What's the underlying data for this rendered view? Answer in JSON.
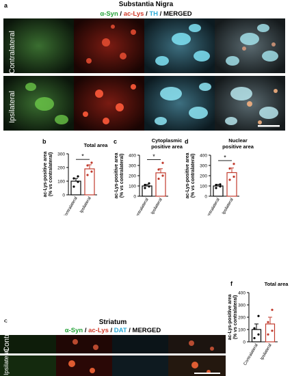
{
  "figure": {
    "panels": {
      "a": {
        "letter": "a",
        "title": "Substantia Nigra",
        "stains": [
          "α-Syn",
          "ac-Lys",
          "TH",
          "MERGED"
        ],
        "rows": [
          "Contralateral",
          "Ipsilateral"
        ]
      },
      "e": {
        "letter": "e",
        "title": "Striatum",
        "stains": [
          "α-Syn",
          "ac-Lys",
          "DAT",
          "MERGED"
        ],
        "rows": [
          "Contralateral",
          "Ipsilateral"
        ]
      }
    },
    "stain_colors": {
      "green": "#27a33a",
      "red": "#d23a2a",
      "cyan": "#29a9d6",
      "black": "#000000"
    }
  },
  "chart_data": [
    {
      "letter": "b",
      "type": "bar",
      "title": "Total area",
      "ylabel": "ac-Lys-positive area\n(% vs contralateral)",
      "categories": [
        "Contralateral",
        "Ipsilateral"
      ],
      "values": [
        100,
        190
      ],
      "errors": [
        20,
        30
      ],
      "points": [
        [
          60,
          95,
          120,
          135
        ],
        [
          145,
          170,
          215,
          235
        ]
      ],
      "ylim": [
        0,
        300
      ],
      "yticks": [
        0,
        100,
        200,
        300
      ],
      "significance": "*"
    },
    {
      "letter": "c",
      "type": "bar",
      "title": "Cytoplasmic\npositive area",
      "ylabel": "ac-Lys-positive area\n(% vs contralateral)",
      "categories": [
        "Contralateral",
        "Ipsilateral"
      ],
      "values": [
        100,
        228
      ],
      "errors": [
        15,
        40
      ],
      "points": [
        [
          80,
          95,
          110,
          125
        ],
        [
          170,
          200,
          260,
          325
        ]
      ],
      "ylim": [
        0,
        400
      ],
      "yticks": [
        0,
        100,
        200,
        300,
        400
      ],
      "significance": "*"
    },
    {
      "letter": "d",
      "type": "bar",
      "title": "Nuclear\npositive area",
      "ylabel": "ac-Lys-positive area\n(% vs contralateral)",
      "categories": [
        "Contralateral",
        "Ipsilateral"
      ],
      "values": [
        100,
        230
      ],
      "errors": [
        15,
        45
      ],
      "points": [
        [
          80,
          95,
          110,
          115
        ],
        [
          160,
          190,
          270,
          315
        ]
      ],
      "ylim": [
        0,
        400
      ],
      "yticks": [
        0,
        100,
        200,
        300,
        400
      ],
      "significance": "*"
    },
    {
      "letter": "f",
      "type": "bar",
      "title": "Total area",
      "ylabel": "ac-Lys-positive area\n(% vs contralateral)",
      "categories": [
        "Contralateral",
        "Ipsilateral"
      ],
      "values": [
        100,
        145
      ],
      "errors": [
        45,
        55
      ],
      "points": [
        [
          30,
          60,
          110,
          210
        ],
        [
          60,
          90,
          160,
          260
        ]
      ],
      "ylim": [
        0,
        400
      ],
      "yticks": [
        0,
        100,
        200,
        300,
        400
      ],
      "significance": ""
    }
  ]
}
